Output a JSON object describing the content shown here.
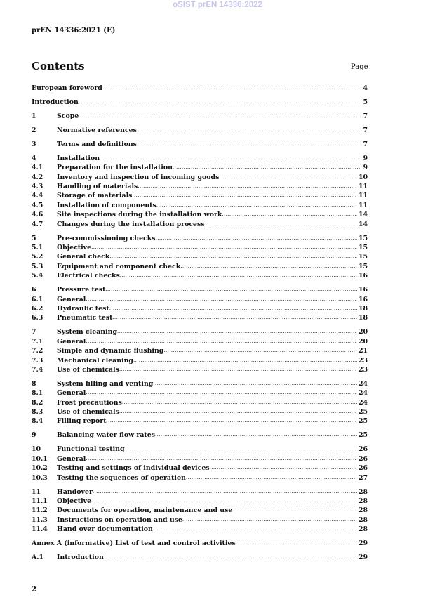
{
  "watermark": "oSIST prEN 14336:2022",
  "header": "prEN 14336:2021 (E)",
  "title": "Contents",
  "page_label": "Page",
  "groups": [
    [
      {
        "num": "",
        "label": "European foreword",
        "page": "4"
      }
    ],
    [
      {
        "num": "",
        "label": "Introduction",
        "page": "5"
      }
    ],
    [
      {
        "num": "1",
        "label": "Scope",
        "page": "7"
      }
    ],
    [
      {
        "num": "2",
        "label": "Normative references",
        "page": "7"
      }
    ],
    [
      {
        "num": "3",
        "label": "Terms and definitions",
        "page": "7"
      }
    ],
    [
      {
        "num": "4",
        "label": "Installation ",
        "page": "9"
      },
      {
        "num": "4.1",
        "label": "Preparation for the installation",
        "page": "9"
      },
      {
        "num": "4.2",
        "label": "Inventory and inspection of incoming goods",
        "page": "10"
      },
      {
        "num": "4.3",
        "label": "Handling of materials",
        "page": "11"
      },
      {
        "num": "4.4",
        "label": "Storage of materials",
        "page": "11"
      },
      {
        "num": "4.5",
        "label": "Installation of components",
        "page": "11"
      },
      {
        "num": "4.6",
        "label": "Site inspections during the installation work ",
        "page": "14"
      },
      {
        "num": "4.7",
        "label": "Changes during the installation process ",
        "page": "14"
      }
    ],
    [
      {
        "num": "5",
        "label": "Pre-commissioning checks",
        "page": "15"
      },
      {
        "num": "5.1",
        "label": "Objective ",
        "page": "15"
      },
      {
        "num": "5.2",
        "label": "General check",
        "page": "15"
      },
      {
        "num": "5.3",
        "label": "Equipment and component check ",
        "page": "15"
      },
      {
        "num": "5.4",
        "label": "Electrical checks",
        "page": "16"
      }
    ],
    [
      {
        "num": "6",
        "label": "Pressure test",
        "page": "16"
      },
      {
        "num": "6.1",
        "label": "General",
        "page": "16"
      },
      {
        "num": "6.2",
        "label": "Hydraulic test",
        "page": "18"
      },
      {
        "num": "6.3",
        "label": "Pneumatic test",
        "page": "18"
      }
    ],
    [
      {
        "num": "7",
        "label": "System cleaning",
        "page": "20"
      },
      {
        "num": "7.1",
        "label": "General",
        "page": "20"
      },
      {
        "num": "7.2",
        "label": "Simple and dynamic flushing",
        "page": "21"
      },
      {
        "num": "7.3",
        "label": "Mechanical cleaning",
        "page": "23"
      },
      {
        "num": "7.4",
        "label": "Use of chemicals ",
        "page": "23"
      }
    ],
    [
      {
        "num": "8",
        "label": "System filling and venting",
        "page": "24"
      },
      {
        "num": "8.1",
        "label": "General",
        "page": "24"
      },
      {
        "num": "8.2",
        "label": "Frost precautions",
        "page": "24"
      },
      {
        "num": "8.3",
        "label": "Use of chemicals ",
        "page": "25"
      },
      {
        "num": "8.4",
        "label": "Filling report",
        "page": "25"
      }
    ],
    [
      {
        "num": "9",
        "label": "Balancing water flow rates",
        "page": "25"
      }
    ],
    [
      {
        "num": "10",
        "label": "Functional testing",
        "page": "26"
      },
      {
        "num": "10.1",
        "label": "General",
        "page": "26"
      },
      {
        "num": "10.2",
        "label": "Testing and settings of individual devices",
        "page": "26"
      },
      {
        "num": "10.3",
        "label": "Testing the sequences of operation ",
        "page": "27"
      }
    ],
    [
      {
        "num": "11",
        "label": "Handover ",
        "page": "28"
      },
      {
        "num": "11.1",
        "label": "Objective ",
        "page": "28"
      },
      {
        "num": "11.2",
        "label": "Documents for operation, maintenance and use ",
        "page": "28"
      },
      {
        "num": "11.3",
        "label": "Instructions on operation and use ",
        "page": "28"
      },
      {
        "num": "11.4",
        "label": "Hand over documentation",
        "page": "28"
      }
    ],
    [
      {
        "num": "",
        "label": "Annex A (informative)  List of test and control activities",
        "page": "29"
      }
    ],
    [
      {
        "num": "A.1",
        "label": "Introduction",
        "page": "29"
      }
    ]
  ],
  "page_number": "2"
}
